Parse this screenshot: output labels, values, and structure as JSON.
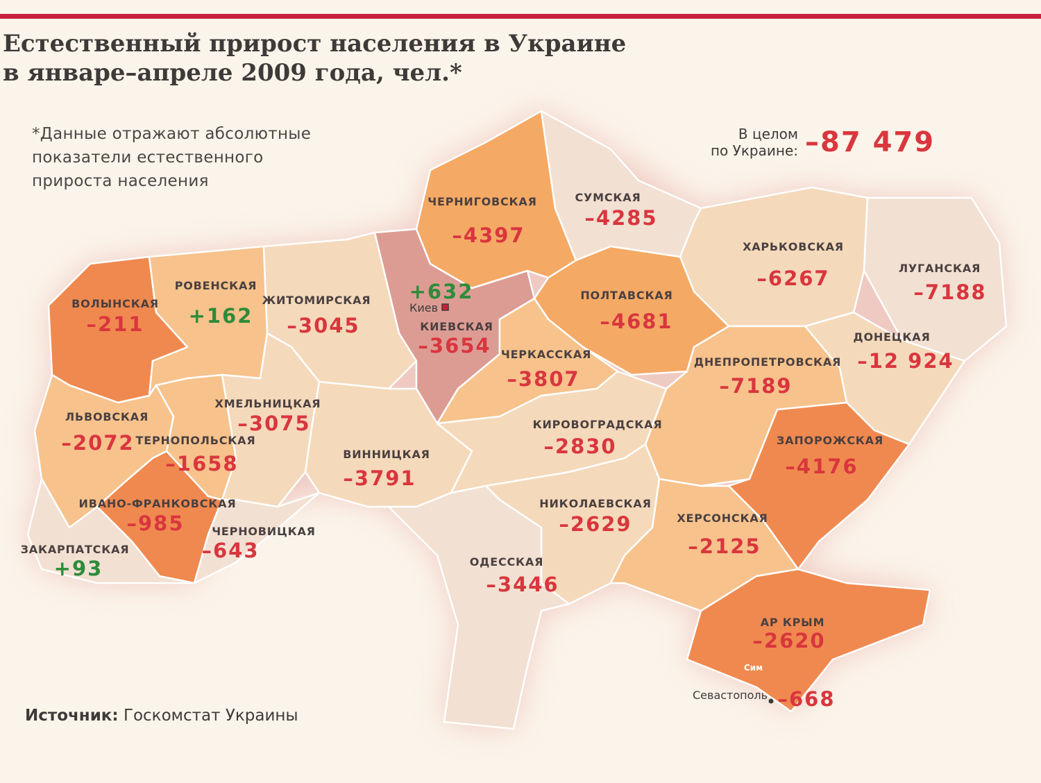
{
  "header": {
    "title_line1": "Естественный прирост населения в Украине",
    "title_line2": "в январе–апреле 2009 года, чел.*"
  },
  "note": {
    "line1": "*Данные отражают абсолютные",
    "line2": "показатели естественного",
    "line3": "прироста населения"
  },
  "total": {
    "label_line1": "В целом",
    "label_line2": "по Украине:",
    "value": "–87 479"
  },
  "source": {
    "label": "Источник:",
    "text": "Госкомстат Украины"
  },
  "colors": {
    "negative": "#d9363e",
    "positive": "#2e8b3a",
    "accent_bar": "#c8203c",
    "deep_orange": "#f0894f",
    "orange": "#f4a965",
    "light_orange": "#f7c28c",
    "beige": "#f5d9bb",
    "pale": "#f2e0d2",
    "rose": "#dc9c94"
  },
  "regions": [
    {
      "id": "volynska",
      "name": "ВОЛЫНСКАЯ",
      "value": "–211",
      "fill": "deep_orange"
    },
    {
      "id": "rivnenska",
      "name": "РОВЕНСКАЯ",
      "value": "+162",
      "fill": "light_orange"
    },
    {
      "id": "zhytomyrska",
      "name": "ЖИТОМИРСКАЯ",
      "value": "–3045",
      "fill": "beige"
    },
    {
      "id": "kyivska",
      "name": "КИЕВСКАЯ",
      "value": "–3654",
      "fill": "rose"
    },
    {
      "id": "chernihivska",
      "name": "ЧЕРНИГОВСКАЯ",
      "value": "–4397",
      "fill": "orange"
    },
    {
      "id": "sumska",
      "name": "СУМСКАЯ",
      "value": "–4285",
      "fill": "pale"
    },
    {
      "id": "kharkivska",
      "name": "ХАРЬКОВСКАЯ",
      "value": "–6267",
      "fill": "beige"
    },
    {
      "id": "luhanska",
      "name": "ЛУГАНСКАЯ",
      "value": "–7188",
      "fill": "pale"
    },
    {
      "id": "poltavska",
      "name": "ПОЛТАВСКАЯ",
      "value": "–4681",
      "fill": "orange"
    },
    {
      "id": "cherkaska",
      "name": "ЧЕРКАССКАЯ",
      "value": "–3807",
      "fill": "light_orange"
    },
    {
      "id": "donetska",
      "name": "ДОНЕЦКАЯ",
      "value": "–12 924",
      "fill": "beige"
    },
    {
      "id": "dnipropetrovska",
      "name": "ДНЕПРОПЕТРОВСКАЯ",
      "value": "–7189",
      "fill": "light_orange"
    },
    {
      "id": "lvivska",
      "name": "ЛЬВОВСКАЯ",
      "value": "–2072",
      "fill": "light_orange"
    },
    {
      "id": "ternopilska",
      "name": "ТЕРНОПОЛЬСКАЯ",
      "value": "–1658",
      "fill": "light_orange"
    },
    {
      "id": "khmelnytska",
      "name": "ХМЕЛЬНИЦКАЯ",
      "value": "–3075",
      "fill": "beige"
    },
    {
      "id": "vinnytska",
      "name": "ВИННИЦКАЯ",
      "value": "–3791",
      "fill": "beige"
    },
    {
      "id": "kirovohradska",
      "name": "КИРОВОГРАДСКАЯ",
      "value": "–2830",
      "fill": "beige"
    },
    {
      "id": "zaporizka",
      "name": "ЗАПОРОЖСКАЯ",
      "value": "–4176",
      "fill": "deep_orange"
    },
    {
      "id": "ivanofrankivska",
      "name": "ИВАНО-ФРАНКОВСКАЯ",
      "value": "–985",
      "fill": "deep_orange"
    },
    {
      "id": "chernivetska",
      "name": "ЧЕРНОВИЦКАЯ",
      "value": "–643",
      "fill": "pale"
    },
    {
      "id": "zakarpatska",
      "name": "ЗАКАРПАТСКАЯ",
      "value": "+93",
      "fill": "pale"
    },
    {
      "id": "mykolaivska",
      "name": "НИКОЛАЕВСКАЯ",
      "value": "–2629",
      "fill": "beige"
    },
    {
      "id": "khersonska",
      "name": "ХЕРСОНСКАЯ",
      "value": "–2125",
      "fill": "light_orange"
    },
    {
      "id": "odeska",
      "name": "ОДЕССКАЯ",
      "value": "–3446",
      "fill": "pale"
    },
    {
      "id": "krym",
      "name": "АР КРЫМ",
      "value": "–2620",
      "fill": "deep_orange"
    }
  ],
  "cities": {
    "kyiv": {
      "name": "Киев",
      "value": "+632"
    },
    "sevastopol": {
      "name": "Севастополь",
      "value": "–668"
    },
    "simferopol": {
      "name": "Сим"
    }
  }
}
